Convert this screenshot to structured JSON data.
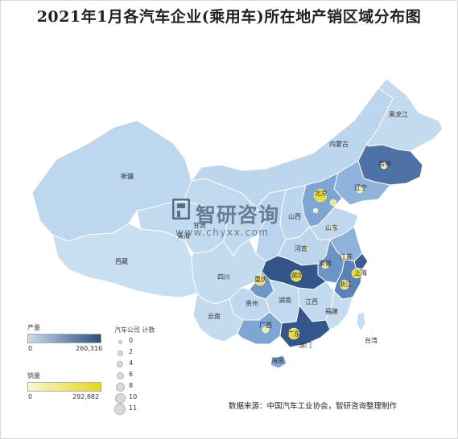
{
  "title": "2021年1月各汽车企业(乘用车)所在地产销区域分布图",
  "watermark": {
    "brand": "智研咨询",
    "url": "www.chyxx.com"
  },
  "source": "数据来源：中国汽车工业协会，智研咨询整理制作",
  "colors": {
    "production_low": "#c6dcef",
    "production_high": "#2f4d7c",
    "sales_low": "#fbf6cf",
    "sales_high": "#e6d81c",
    "size_dot": "#d9d9d9"
  },
  "legend": {
    "production": {
      "title": "产量",
      "min": "0",
      "max": "260,316"
    },
    "sales": {
      "title": "销量",
      "min": "0",
      "max": "292,882"
    },
    "size": {
      "title": "汽车公司 计数",
      "values": [
        "0",
        "2",
        "4",
        "6",
        "8",
        "10",
        "11"
      ]
    }
  },
  "province_labels": [
    {
      "key": "heilongjiang",
      "text": "黑龙江"
    },
    {
      "key": "neimenggu",
      "text": "内蒙古"
    },
    {
      "key": "jilin",
      "text": "吉林"
    },
    {
      "key": "liaoning",
      "text": "辽宁"
    },
    {
      "key": "xinjiang",
      "text": "新疆"
    },
    {
      "key": "beijing",
      "text": "北京"
    },
    {
      "key": "shanxi",
      "text": "山西"
    },
    {
      "key": "shandong",
      "text": "山东"
    },
    {
      "key": "qinghai",
      "text": "青海"
    },
    {
      "key": "gansu",
      "text": "甘肃"
    },
    {
      "key": "henan",
      "text": "河南"
    },
    {
      "key": "jiangsu",
      "text": "江苏"
    },
    {
      "key": "anhui",
      "text": "安徽"
    },
    {
      "key": "shanghai",
      "text": "上海"
    },
    {
      "key": "xizang",
      "text": "西藏"
    },
    {
      "key": "sichuan",
      "text": "四川"
    },
    {
      "key": "chongqing",
      "text": "重庆"
    },
    {
      "key": "hubei",
      "text": "湖北"
    },
    {
      "key": "zhejiang",
      "text": "浙江"
    },
    {
      "key": "guizhou",
      "text": "贵州"
    },
    {
      "key": "hunan",
      "text": "湖南"
    },
    {
      "key": "jiangxi",
      "text": "江西"
    },
    {
      "key": "fujian",
      "text": "福建"
    },
    {
      "key": "yunnan",
      "text": "云南"
    },
    {
      "key": "guangxi",
      "text": "广西"
    },
    {
      "key": "guangdong",
      "text": "广东"
    },
    {
      "key": "taiwan",
      "text": "台湾"
    },
    {
      "key": "aomen",
      "text": "澳门"
    },
    {
      "key": "hainan",
      "text": "海南"
    }
  ]
}
